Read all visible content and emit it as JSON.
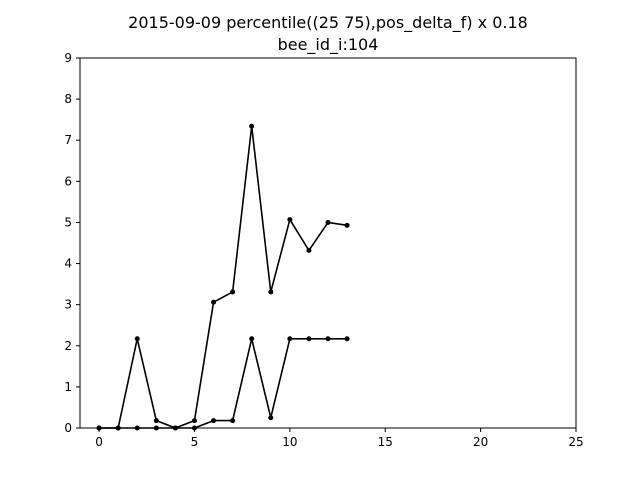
{
  "chart_data": {
    "type": "line",
    "title": "2015-09-09 percentile((25 75),pos_delta_f) x 0.18",
    "subtitle": "bee_id_i:104",
    "xlabel": "",
    "ylabel": "",
    "xlim": [
      -1,
      25
    ],
    "ylim": [
      0,
      9
    ],
    "xticks": [
      0,
      5,
      10,
      15,
      20,
      25
    ],
    "yticks": [
      0,
      1,
      2,
      3,
      4,
      5,
      6,
      7,
      8,
      9
    ],
    "grid": false,
    "line_color": "#000000",
    "series": [
      {
        "x": [
          0,
          1,
          2,
          3,
          4,
          5,
          6,
          7,
          8,
          9,
          10,
          11,
          12,
          13
        ],
        "values": [
          0.0,
          0.0,
          0.0,
          0.0,
          0.0,
          0.18,
          3.06,
          3.31,
          7.34,
          3.31,
          5.07,
          4.32,
          5.0,
          4.93
        ]
      },
      {
        "x": [
          0,
          1,
          2,
          3,
          4,
          5,
          6,
          7,
          8,
          9,
          10,
          11,
          12,
          13
        ],
        "values": [
          0.0,
          0.0,
          2.17,
          0.18,
          0.0,
          0.0,
          0.18,
          0.18,
          2.17,
          0.25,
          2.17,
          2.17,
          2.17,
          2.17
        ]
      }
    ]
  }
}
